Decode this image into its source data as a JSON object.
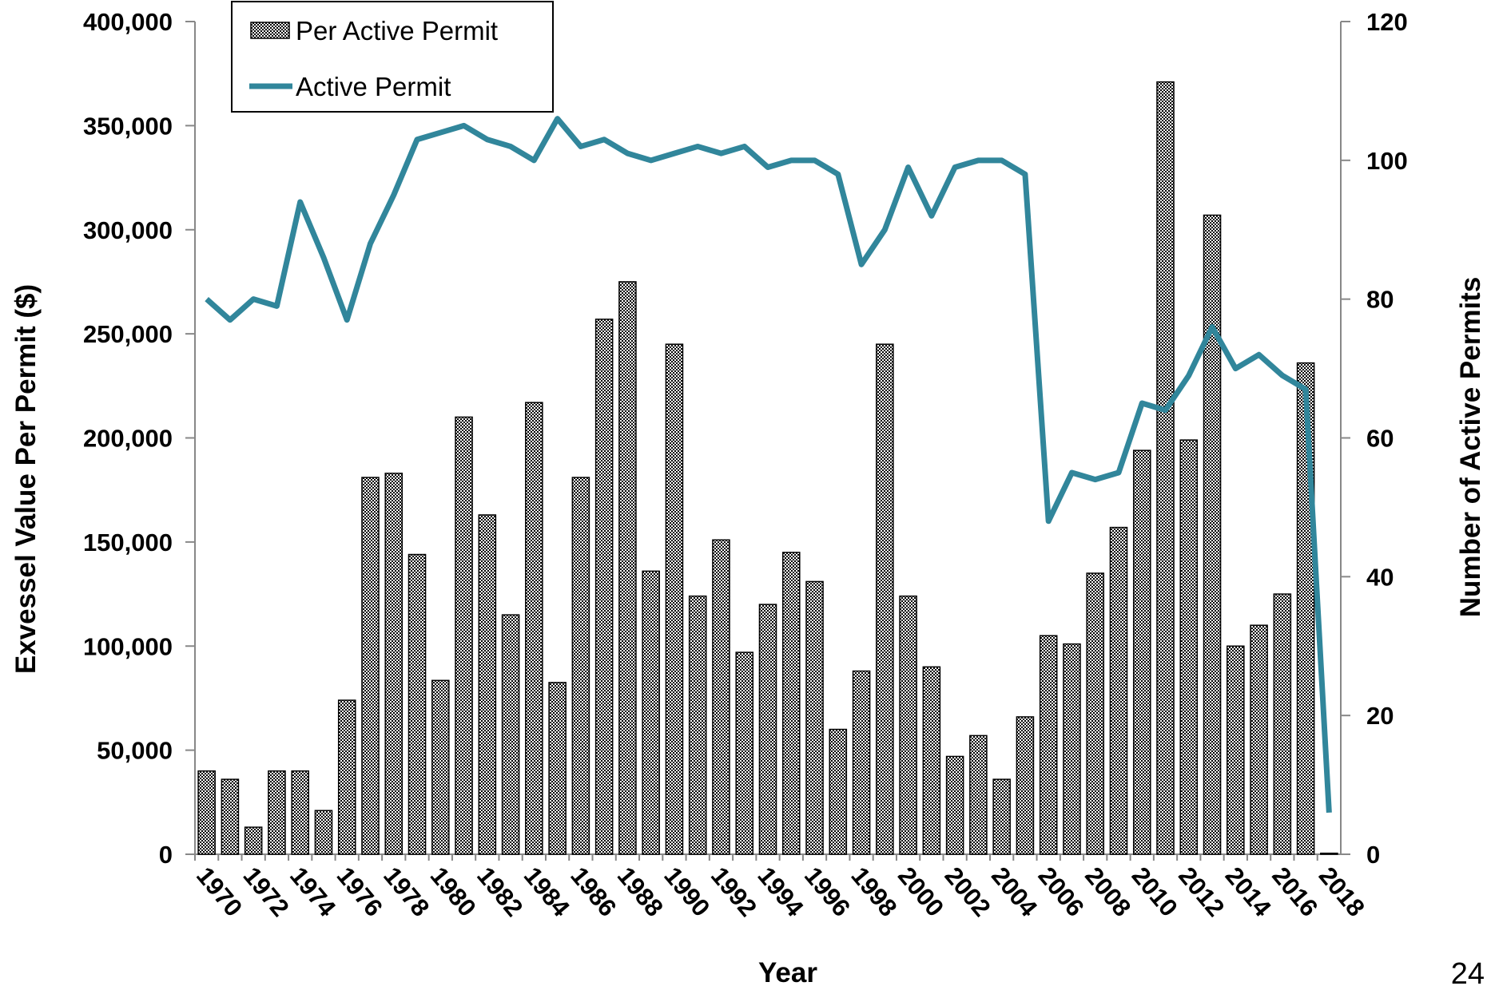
{
  "chart_data": {
    "type": "bar",
    "x_label": "Year",
    "y_label": "Exvessel Value Per Permit ($)",
    "y2_label": "Number of Active Permits",
    "categories": [
      "1970",
      null,
      "1972",
      null,
      "1974",
      null,
      "1976",
      null,
      "1978",
      null,
      "1980",
      null,
      "1982",
      null,
      "1984",
      null,
      "1986",
      null,
      "1988",
      null,
      "1990",
      null,
      "1992",
      null,
      "1994",
      null,
      "1996",
      null,
      "1998",
      null,
      "2000",
      null,
      "2002",
      null,
      "2004",
      null,
      "2006",
      null,
      "2008",
      null,
      "2010",
      null,
      "2012",
      null,
      "2014",
      null,
      "2016",
      null,
      "2018"
    ],
    "series": [
      {
        "name": "Per Active Permit",
        "type": "bar",
        "color": "#000000",
        "values": [
          40000,
          36000,
          13000,
          40000,
          40000,
          21000,
          74000,
          181000,
          183000,
          144000,
          83500,
          210000,
          163000,
          115000,
          217000,
          82500,
          181000,
          257000,
          275000,
          136000,
          245000,
          124000,
          151000,
          97000,
          120000,
          145000,
          131000,
          60000,
          88000,
          245000,
          124000,
          90000,
          47000,
          57000,
          36000,
          66000,
          105000,
          101000,
          135000,
          157000,
          194000,
          371000,
          199000,
          307000,
          100000,
          110000,
          125000,
          236000,
          500
        ]
      },
      {
        "name": "Active Permit",
        "type": "line",
        "axis": "y2",
        "color": "#31869b",
        "values": [
          80,
          77,
          80,
          79,
          94,
          86,
          77,
          88,
          95,
          103,
          104,
          105,
          103,
          102,
          100,
          106,
          102,
          103,
          101,
          100,
          101,
          102,
          101,
          102,
          99,
          100,
          100,
          98,
          85,
          90,
          99,
          92,
          99,
          100,
          100,
          98,
          48,
          55,
          54,
          55,
          65,
          64,
          69,
          76,
          70,
          72,
          69,
          67,
          6
        ]
      }
    ],
    "ylim": [
      0,
      400000
    ],
    "yticks": [
      0,
      {
        "value": 50000,
        "label": "50,000"
      },
      {
        "value": 100000,
        "label": "100,000"
      },
      {
        "value": 150000,
        "label": "150,000"
      },
      {
        "value": 200000,
        "label": "200,000"
      },
      {
        "value": 250000,
        "label": "250,000"
      },
      {
        "value": 300000,
        "label": "300,000"
      },
      {
        "value": 350000,
        "label": "350,000"
      },
      {
        "value": 400000,
        "label": "400,000"
      }
    ],
    "y2lim": [
      0,
      120
    ],
    "y2ticks": [
      0,
      20,
      40,
      60,
      80,
      100,
      120
    ],
    "legend": "top-left",
    "grid": false
  },
  "page_number": "24"
}
